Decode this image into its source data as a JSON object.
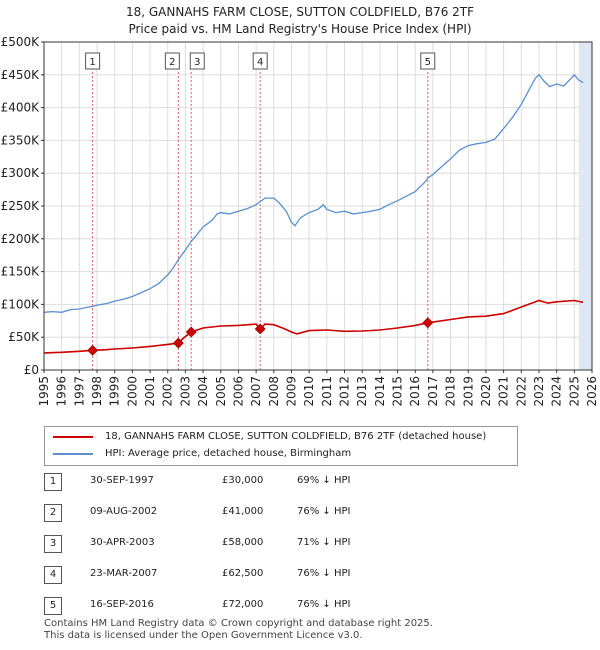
{
  "title_line1": "18, GANNAHS FARM CLOSE, SUTTON COLDFIELD, B76 2TF",
  "title_line2": "Price paid vs. HM Land Registry's House Price Index (HPI)",
  "colors": {
    "property": "#cc0000",
    "hpi": "#5b8fd0",
    "grid": "#dddddd",
    "event_line": "#e06666",
    "shade": "#dfe7f4"
  },
  "legend": {
    "property_label": "18, GANNAHS FARM CLOSE, SUTTON COLDFIELD, B76 2TF (detached house)",
    "hpi_label": "HPI: Average price, detached house, Birmingham"
  },
  "sales": [
    {
      "num": "1",
      "date": "30-SEP-1997",
      "price": "£30,000",
      "hpi": "69% ↓ HPI"
    },
    {
      "num": "2",
      "date": "09-AUG-2002",
      "price": "£41,000",
      "hpi": "76% ↓ HPI"
    },
    {
      "num": "3",
      "date": "30-APR-2003",
      "price": "£58,000",
      "hpi": "71% ↓ HPI"
    },
    {
      "num": "4",
      "date": "23-MAR-2007",
      "price": "£62,500",
      "hpi": "76% ↓ HPI"
    },
    {
      "num": "5",
      "date": "16-SEP-2016",
      "price": "£72,000",
      "hpi": "76% ↓ HPI"
    }
  ],
  "footer_line1": "Contains HM Land Registry data © Crown copyright and database right 2025.",
  "footer_line2": "This data is licensed under the Open Government Licence v3.0.",
  "chart_data": {
    "type": "line",
    "title": "18, GANNAHS FARM CLOSE, SUTTON COLDFIELD, B76 2TF",
    "subtitle": "Price paid vs. HM Land Registry's House Price Index (HPI)",
    "xlim": [
      1995,
      2026
    ],
    "ylim": [
      0,
      500000
    ],
    "y_ticks": [
      0,
      50000,
      100000,
      150000,
      200000,
      250000,
      300000,
      350000,
      400000,
      450000,
      500000
    ],
    "y_tick_labels": [
      "£0",
      "£50K",
      "£100K",
      "£150K",
      "£200K",
      "£250K",
      "£300K",
      "£350K",
      "£400K",
      "£450K",
      "£500K"
    ],
    "x_ticks": [
      1995,
      1996,
      1997,
      1998,
      1999,
      2000,
      2001,
      2002,
      2003,
      2004,
      2005,
      2006,
      2007,
      2008,
      2009,
      2010,
      2011,
      2012,
      2013,
      2014,
      2015,
      2016,
      2017,
      2018,
      2019,
      2020,
      2021,
      2022,
      2023,
      2024,
      2025,
      2026
    ],
    "x_tick_labels": [
      "1995",
      "1996",
      "1997",
      "1998",
      "1999",
      "2000",
      "2001",
      "2002",
      "2003",
      "2004",
      "2005",
      "2006",
      "2007",
      "2008",
      "2009",
      "2010",
      "2011",
      "2012",
      "2013",
      "2014",
      "2015",
      "2016",
      "2017",
      "2018",
      "2019",
      "2020",
      "2021",
      "2022",
      "2023",
      "2024",
      "2025",
      "2026"
    ],
    "forecast_start": 2025.25,
    "series": [
      {
        "name": "HPI: Average price, detached house, Birmingham",
        "points": [
          [
            1995.0,
            88000
          ],
          [
            1995.5,
            89000
          ],
          [
            1996.0,
            88000
          ],
          [
            1996.5,
            92000
          ],
          [
            1997.0,
            93000
          ],
          [
            1997.5,
            96000
          ],
          [
            1997.75,
            97000
          ],
          [
            1998.0,
            99000
          ],
          [
            1998.5,
            101000
          ],
          [
            1999.0,
            105000
          ],
          [
            1999.5,
            108000
          ],
          [
            2000.0,
            112000
          ],
          [
            2000.5,
            118000
          ],
          [
            2001.0,
            124000
          ],
          [
            2001.5,
            132000
          ],
          [
            2002.0,
            145000
          ],
          [
            2002.3,
            155000
          ],
          [
            2002.6,
            168000
          ],
          [
            2003.0,
            183000
          ],
          [
            2003.3,
            195000
          ],
          [
            2003.7,
            208000
          ],
          [
            2004.0,
            218000
          ],
          [
            2004.5,
            228000
          ],
          [
            2004.8,
            238000
          ],
          [
            2005.0,
            240000
          ],
          [
            2005.5,
            238000
          ],
          [
            2006.0,
            242000
          ],
          [
            2006.5,
            246000
          ],
          [
            2007.0,
            252000
          ],
          [
            2007.25,
            257000
          ],
          [
            2007.5,
            262000
          ],
          [
            2008.0,
            262000
          ],
          [
            2008.3,
            255000
          ],
          [
            2008.7,
            242000
          ],
          [
            2009.0,
            225000
          ],
          [
            2009.2,
            220000
          ],
          [
            2009.5,
            232000
          ],
          [
            2010.0,
            240000
          ],
          [
            2010.5,
            245000
          ],
          [
            2010.8,
            252000
          ],
          [
            2011.0,
            245000
          ],
          [
            2011.5,
            240000
          ],
          [
            2012.0,
            242000
          ],
          [
            2012.5,
            238000
          ],
          [
            2013.0,
            240000
          ],
          [
            2013.5,
            242000
          ],
          [
            2014.0,
            245000
          ],
          [
            2014.5,
            252000
          ],
          [
            2015.0,
            258000
          ],
          [
            2015.5,
            265000
          ],
          [
            2016.0,
            272000
          ],
          [
            2016.5,
            285000
          ],
          [
            2016.7,
            292000
          ],
          [
            2017.0,
            298000
          ],
          [
            2017.5,
            310000
          ],
          [
            2018.0,
            322000
          ],
          [
            2018.5,
            335000
          ],
          [
            2019.0,
            342000
          ],
          [
            2019.5,
            345000
          ],
          [
            2020.0,
            347000
          ],
          [
            2020.5,
            352000
          ],
          [
            2021.0,
            368000
          ],
          [
            2021.5,
            385000
          ],
          [
            2022.0,
            405000
          ],
          [
            2022.5,
            430000
          ],
          [
            2022.8,
            445000
          ],
          [
            2023.0,
            450000
          ],
          [
            2023.3,
            440000
          ],
          [
            2023.6,
            432000
          ],
          [
            2024.0,
            436000
          ],
          [
            2024.4,
            433000
          ],
          [
            2024.8,
            444000
          ],
          [
            2025.0,
            450000
          ],
          [
            2025.25,
            442000
          ],
          [
            2025.5,
            438000
          ]
        ]
      },
      {
        "name": "18, GANNAHS FARM CLOSE, SUTTON COLDFIELD, B76 2TF (detached house)",
        "points": [
          [
            1995.0,
            26000
          ],
          [
            1996.0,
            27000
          ],
          [
            1997.0,
            28500
          ],
          [
            1997.75,
            30000
          ],
          [
            1998.5,
            31000
          ],
          [
            1999.0,
            32000
          ],
          [
            2000.0,
            33500
          ],
          [
            2001.0,
            36000
          ],
          [
            2002.0,
            39000
          ],
          [
            2002.6,
            41000
          ],
          [
            2002.9,
            49000
          ],
          [
            2003.33,
            58000
          ],
          [
            2004.0,
            64000
          ],
          [
            2005.0,
            67000
          ],
          [
            2006.0,
            68000
          ],
          [
            2007.0,
            70000
          ],
          [
            2007.23,
            62500
          ],
          [
            2007.5,
            70000
          ],
          [
            2008.0,
            69000
          ],
          [
            2008.5,
            64000
          ],
          [
            2009.0,
            58000
          ],
          [
            2009.3,
            55000
          ],
          [
            2010.0,
            60000
          ],
          [
            2011.0,
            61000
          ],
          [
            2012.0,
            59000
          ],
          [
            2013.0,
            59500
          ],
          [
            2014.0,
            61000
          ],
          [
            2015.0,
            64000
          ],
          [
            2016.0,
            68000
          ],
          [
            2016.71,
            72000
          ],
          [
            2017.0,
            73000
          ],
          [
            2018.0,
            77000
          ],
          [
            2019.0,
            81000
          ],
          [
            2020.0,
            82000
          ],
          [
            2021.0,
            86000
          ],
          [
            2022.0,
            96000
          ],
          [
            2023.0,
            106000
          ],
          [
            2023.5,
            102000
          ],
          [
            2024.0,
            104000
          ],
          [
            2025.0,
            106000
          ],
          [
            2025.5,
            103000
          ]
        ]
      }
    ],
    "events": [
      {
        "label": "1",
        "x": 1997.75,
        "y": 30000
      },
      {
        "label": "2",
        "x": 2002.6,
        "y": 41000
      },
      {
        "label": "3",
        "x": 2003.33,
        "y": 58000
      },
      {
        "label": "4",
        "x": 2007.23,
        "y": 62500
      },
      {
        "label": "5",
        "x": 2016.71,
        "y": 72000
      }
    ]
  }
}
